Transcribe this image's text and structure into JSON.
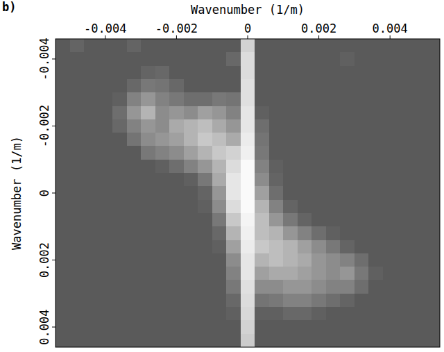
{
  "chart_data": {
    "type": "heatmap",
    "panel_label": "b)",
    "xlabel": "Wavenumber (1/m)",
    "ylabel": "Wavenumber (1/m)",
    "xlim": [
      -0.0054,
      0.0054
    ],
    "ylim": [
      -0.0046,
      0.0046
    ],
    "xticks": [
      -0.004,
      -0.002,
      0,
      0.002,
      0.004
    ],
    "yticks": [
      -0.004,
      -0.002,
      0,
      0.002,
      0.004
    ],
    "x": [
      -0.0052,
      -0.0048,
      -0.0044,
      -0.004,
      -0.0036,
      -0.0032,
      -0.0028,
      -0.0024,
      -0.002,
      -0.0016,
      -0.0012,
      -0.0008,
      -0.0004,
      0,
      0.0004,
      0.0008,
      0.0012,
      0.0016,
      0.002,
      0.0024,
      0.0028,
      0.0032,
      0.0036,
      0.004,
      0.0044,
      0.0048,
      0.0052
    ],
    "y": [
      -0.0044,
      -0.004,
      -0.0036,
      -0.0032,
      -0.0028,
      -0.0024,
      -0.002,
      -0.0016,
      -0.0012,
      -0.0008,
      -0.0004,
      0,
      0.0004,
      0.0008,
      0.0012,
      0.0016,
      0.002,
      0.0024,
      0.0028,
      0.0032,
      0.0036,
      0.004,
      0.0044
    ],
    "values": [
      [
        15,
        20,
        15,
        15,
        15,
        20,
        15,
        15,
        15,
        15,
        15,
        15,
        15,
        75,
        15,
        15,
        15,
        15,
        15,
        15,
        15,
        15,
        15,
        15,
        15,
        15,
        15
      ],
      [
        15,
        15,
        15,
        15,
        15,
        15,
        15,
        15,
        15,
        15,
        15,
        15,
        22,
        80,
        15,
        15,
        15,
        15,
        15,
        15,
        18,
        15,
        15,
        15,
        15,
        15,
        15
      ],
      [
        15,
        15,
        15,
        15,
        15,
        15,
        20,
        22,
        15,
        15,
        15,
        15,
        15,
        80,
        15,
        15,
        15,
        15,
        15,
        15,
        15,
        15,
        15,
        15,
        15,
        15,
        15
      ],
      [
        15,
        15,
        15,
        15,
        15,
        22,
        30,
        28,
        22,
        15,
        15,
        15,
        15,
        82,
        15,
        15,
        15,
        15,
        15,
        15,
        15,
        15,
        15,
        15,
        15,
        15,
        15
      ],
      [
        15,
        15,
        15,
        15,
        18,
        35,
        45,
        35,
        30,
        25,
        25,
        30,
        28,
        82,
        15,
        15,
        15,
        15,
        15,
        15,
        15,
        15,
        15,
        15,
        15,
        15,
        15
      ],
      [
        15,
        15,
        15,
        15,
        25,
        45,
        60,
        40,
        45,
        40,
        50,
        45,
        35,
        85,
        18,
        15,
        15,
        15,
        15,
        15,
        15,
        15,
        15,
        15,
        15,
        15,
        15
      ],
      [
        15,
        15,
        15,
        15,
        22,
        35,
        45,
        40,
        55,
        60,
        65,
        55,
        45,
        85,
        25,
        15,
        15,
        15,
        15,
        15,
        15,
        15,
        15,
        15,
        15,
        15,
        15
      ],
      [
        15,
        15,
        15,
        15,
        15,
        28,
        40,
        45,
        50,
        60,
        70,
        65,
        55,
        88,
        28,
        15,
        15,
        15,
        15,
        15,
        15,
        15,
        15,
        15,
        15,
        15,
        15
      ],
      [
        15,
        15,
        15,
        15,
        15,
        15,
        30,
        35,
        40,
        50,
        60,
        70,
        75,
        90,
        30,
        15,
        15,
        15,
        15,
        15,
        15,
        15,
        15,
        15,
        15,
        15,
        15
      ],
      [
        15,
        15,
        15,
        15,
        15,
        15,
        15,
        18,
        25,
        35,
        45,
        60,
        80,
        95,
        35,
        18,
        15,
        15,
        15,
        15,
        15,
        15,
        15,
        15,
        15,
        15,
        15
      ],
      [
        15,
        15,
        15,
        15,
        15,
        15,
        15,
        15,
        15,
        18,
        30,
        55,
        85,
        95,
        40,
        20,
        15,
        15,
        15,
        15,
        15,
        15,
        15,
        15,
        15,
        15,
        15
      ],
      [
        15,
        15,
        15,
        15,
        15,
        15,
        15,
        15,
        15,
        15,
        20,
        45,
        85,
        95,
        50,
        25,
        15,
        15,
        15,
        15,
        15,
        15,
        15,
        15,
        15,
        15,
        15
      ],
      [
        15,
        15,
        15,
        15,
        15,
        15,
        15,
        15,
        15,
        15,
        18,
        40,
        80,
        95,
        60,
        35,
        20,
        15,
        15,
        15,
        15,
        15,
        15,
        15,
        15,
        15,
        15
      ],
      [
        15,
        15,
        15,
        15,
        15,
        15,
        15,
        15,
        15,
        15,
        15,
        30,
        70,
        92,
        65,
        45,
        30,
        20,
        15,
        15,
        15,
        15,
        15,
        15,
        15,
        15,
        15
      ],
      [
        15,
        15,
        15,
        15,
        15,
        15,
        15,
        15,
        15,
        15,
        15,
        22,
        60,
        90,
        65,
        60,
        45,
        35,
        25,
        18,
        15,
        15,
        15,
        15,
        15,
        15,
        15
      ],
      [
        15,
        15,
        15,
        15,
        15,
        15,
        15,
        15,
        15,
        15,
        15,
        18,
        50,
        88,
        70,
        65,
        60,
        50,
        40,
        30,
        20,
        15,
        15,
        15,
        15,
        15,
        15
      ],
      [
        15,
        15,
        15,
        15,
        15,
        15,
        15,
        15,
        15,
        15,
        15,
        15,
        40,
        85,
        60,
        65,
        60,
        55,
        45,
        40,
        35,
        25,
        15,
        15,
        15,
        15,
        15
      ],
      [
        15,
        15,
        15,
        15,
        15,
        15,
        15,
        15,
        15,
        15,
        15,
        15,
        35,
        85,
        50,
        55,
        55,
        50,
        45,
        40,
        45,
        30,
        18,
        15,
        15,
        15,
        15
      ],
      [
        15,
        15,
        15,
        15,
        15,
        15,
        15,
        15,
        15,
        15,
        15,
        15,
        30,
        82,
        40,
        40,
        45,
        45,
        40,
        35,
        35,
        25,
        15,
        15,
        15,
        15,
        15
      ],
      [
        15,
        15,
        15,
        15,
        15,
        15,
        15,
        15,
        15,
        15,
        15,
        15,
        22,
        80,
        28,
        30,
        35,
        35,
        30,
        25,
        20,
        15,
        15,
        15,
        15,
        15,
        15
      ],
      [
        15,
        15,
        15,
        15,
        15,
        15,
        15,
        15,
        15,
        15,
        15,
        15,
        18,
        78,
        18,
        18,
        22,
        22,
        18,
        15,
        15,
        15,
        15,
        15,
        15,
        15,
        15
      ],
      [
        15,
        15,
        15,
        15,
        15,
        15,
        15,
        15,
        15,
        15,
        15,
        15,
        15,
        75,
        15,
        15,
        15,
        15,
        15,
        15,
        15,
        15,
        15,
        15,
        15,
        15,
        15
      ],
      [
        15,
        15,
        15,
        15,
        15,
        15,
        15,
        15,
        15,
        15,
        15,
        15,
        15,
        72,
        15,
        15,
        15,
        15,
        15,
        15,
        15,
        15,
        15,
        15,
        15,
        15,
        15
      ]
    ]
  }
}
